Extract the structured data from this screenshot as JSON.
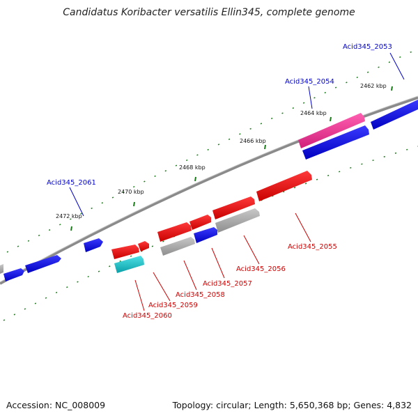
{
  "title": "Candidatus Koribacter versatilis Ellin345, complete genome",
  "footer": {
    "accession": "Accession: NC_008009",
    "stats": "Topology: circular; Length: 5,650,368 bp; Genes: 4,832"
  },
  "scale_labels": [
    "2462 kbp",
    "2464 kbp",
    "2466 kbp",
    "2468 kbp",
    "2470 kbp",
    "2472 kbp"
  ],
  "colors": {
    "forward": "#0000dd",
    "reverse": "#e00000",
    "pseudo_gray": "#a8a8a8",
    "pink": "#e8338f",
    "cyan": "#14bcc4",
    "backbone": "#808080",
    "tick": "#1a7a1a",
    "label_blue": "#0000cc",
    "label_red": "#cc0000"
  },
  "gene_labels": {
    "blue": [
      "Acid345_2053",
      "Acid345_2054",
      "Acid345_2061"
    ],
    "red": [
      "Acid345_2055",
      "Acid345_2056",
      "Acid345_2057",
      "Acid345_2058",
      "Acid345_2059",
      "Acid345_2060"
    ]
  }
}
